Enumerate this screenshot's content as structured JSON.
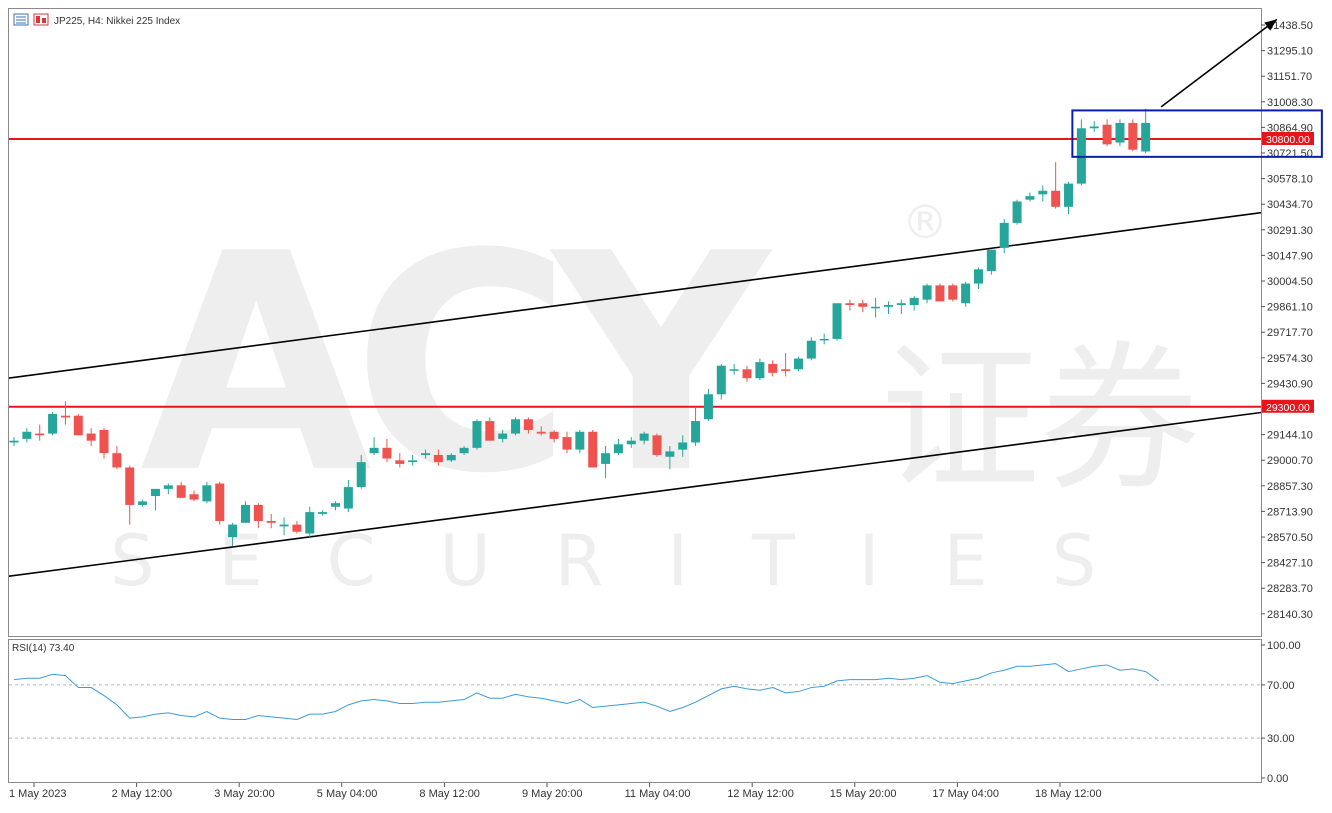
{
  "header": {
    "symbol_label": "JP225, H4:  Nikkei 225 Index"
  },
  "watermark": {
    "brand": "ACY",
    "chinese": "证券",
    "tagline": "SECURITIES",
    "registered": "®"
  },
  "colors": {
    "bull": "#26a69a",
    "bear": "#ef5350",
    "level": "#e8141b",
    "channel": "#000000",
    "box": "#0b1ea8",
    "rsi_line": "#3a9bdc",
    "rsi_level": "#b5b5b5"
  },
  "chart_data": {
    "type": "candlestick",
    "title": "JP225, H4:  Nikkei 225 Index",
    "ylim": [
      28025,
      31510
    ],
    "y_ticks": [
      "31438.50",
      "31295.10",
      "31151.70",
      "31008.30",
      "30864.90",
      "30721.50",
      "30578.10",
      "30434.70",
      "30291.30",
      "30147.90",
      "30004.50",
      "29861.10",
      "29717.70",
      "29574.30",
      "29430.90",
      "29144.10",
      "29000.70",
      "28857.30",
      "28713.90",
      "28570.50",
      "28427.10",
      "28283.70",
      "28140.30"
    ],
    "x_labels": [
      "1 May 2023",
      "2 May 12:00",
      "3 May 20:00",
      "5 May 04:00",
      "8 May 12:00",
      "9 May 20:00",
      "11 May 04:00",
      "12 May 12:00",
      "15 May 20:00",
      "17 May 04:00",
      "18 May 12:00"
    ],
    "candles": [
      {
        "o": 29100,
        "h": 29130,
        "l": 29080,
        "c": 29110
      },
      {
        "o": 29120,
        "h": 29180,
        "l": 29100,
        "c": 29160
      },
      {
        "o": 29150,
        "h": 29200,
        "l": 29110,
        "c": 29140
      },
      {
        "o": 29150,
        "h": 29270,
        "l": 29140,
        "c": 29260
      },
      {
        "o": 29250,
        "h": 29330,
        "l": 29200,
        "c": 29240
      },
      {
        "o": 29250,
        "h": 29260,
        "l": 29140,
        "c": 29140
      },
      {
        "o": 29150,
        "h": 29180,
        "l": 29080,
        "c": 29110
      },
      {
        "o": 29170,
        "h": 29180,
        "l": 29010,
        "c": 29040
      },
      {
        "o": 29040,
        "h": 29080,
        "l": 28950,
        "c": 28960
      },
      {
        "o": 28960,
        "h": 28970,
        "l": 28640,
        "c": 28750
      },
      {
        "o": 28750,
        "h": 28780,
        "l": 28740,
        "c": 28770
      },
      {
        "o": 28800,
        "h": 28840,
        "l": 28720,
        "c": 28840
      },
      {
        "o": 28840,
        "h": 28870,
        "l": 28810,
        "c": 28860
      },
      {
        "o": 28860,
        "h": 28880,
        "l": 28790,
        "c": 28790
      },
      {
        "o": 28810,
        "h": 28830,
        "l": 28770,
        "c": 28780
      },
      {
        "o": 28770,
        "h": 28880,
        "l": 28760,
        "c": 28860
      },
      {
        "o": 28870,
        "h": 28880,
        "l": 28640,
        "c": 28660
      },
      {
        "o": 28570,
        "h": 28650,
        "l": 28520,
        "c": 28640
      },
      {
        "o": 28650,
        "h": 28770,
        "l": 28650,
        "c": 28750
      },
      {
        "o": 28750,
        "h": 28760,
        "l": 28620,
        "c": 28660
      },
      {
        "o": 28660,
        "h": 28700,
        "l": 28620,
        "c": 28650
      },
      {
        "o": 28630,
        "h": 28680,
        "l": 28580,
        "c": 28640
      },
      {
        "o": 28640,
        "h": 28660,
        "l": 28590,
        "c": 28600
      },
      {
        "o": 28590,
        "h": 28740,
        "l": 28570,
        "c": 28710
      },
      {
        "o": 28700,
        "h": 28720,
        "l": 28690,
        "c": 28710
      },
      {
        "o": 28740,
        "h": 28770,
        "l": 28720,
        "c": 28760
      },
      {
        "o": 28730,
        "h": 28890,
        "l": 28710,
        "c": 28850
      },
      {
        "o": 28850,
        "h": 29030,
        "l": 28840,
        "c": 28990
      },
      {
        "o": 29040,
        "h": 29130,
        "l": 29030,
        "c": 29070
      },
      {
        "o": 29070,
        "h": 29120,
        "l": 28990,
        "c": 29010
      },
      {
        "o": 29000,
        "h": 29040,
        "l": 28960,
        "c": 28980
      },
      {
        "o": 28990,
        "h": 29030,
        "l": 28970,
        "c": 29000
      },
      {
        "o": 29030,
        "h": 29060,
        "l": 29010,
        "c": 29040
      },
      {
        "o": 29030,
        "h": 29060,
        "l": 28970,
        "c": 28990
      },
      {
        "o": 29000,
        "h": 29040,
        "l": 28990,
        "c": 29030
      },
      {
        "o": 29040,
        "h": 29080,
        "l": 29030,
        "c": 29070
      },
      {
        "o": 29070,
        "h": 29230,
        "l": 29060,
        "c": 29220
      },
      {
        "o": 29220,
        "h": 29240,
        "l": 29110,
        "c": 29110
      },
      {
        "o": 29120,
        "h": 29170,
        "l": 29100,
        "c": 29150
      },
      {
        "o": 29150,
        "h": 29240,
        "l": 29140,
        "c": 29230
      },
      {
        "o": 29230,
        "h": 29240,
        "l": 29150,
        "c": 29170
      },
      {
        "o": 29160,
        "h": 29190,
        "l": 29140,
        "c": 29150
      },
      {
        "o": 29160,
        "h": 29170,
        "l": 29100,
        "c": 29120
      },
      {
        "o": 29130,
        "h": 29160,
        "l": 29040,
        "c": 29060
      },
      {
        "o": 29060,
        "h": 29170,
        "l": 29040,
        "c": 29160
      },
      {
        "o": 29160,
        "h": 29170,
        "l": 28960,
        "c": 28960
      },
      {
        "o": 28980,
        "h": 29080,
        "l": 28900,
        "c": 29040
      },
      {
        "o": 29040,
        "h": 29120,
        "l": 29030,
        "c": 29090
      },
      {
        "o": 29090,
        "h": 29130,
        "l": 29070,
        "c": 29110
      },
      {
        "o": 29110,
        "h": 29160,
        "l": 29090,
        "c": 29150
      },
      {
        "o": 29140,
        "h": 29150,
        "l": 29020,
        "c": 29030
      },
      {
        "o": 29020,
        "h": 29080,
        "l": 28950,
        "c": 29050
      },
      {
        "o": 29060,
        "h": 29140,
        "l": 29020,
        "c": 29100
      },
      {
        "o": 29100,
        "h": 29300,
        "l": 29080,
        "c": 29220
      },
      {
        "o": 29230,
        "h": 29400,
        "l": 29220,
        "c": 29370
      },
      {
        "o": 29370,
        "h": 29540,
        "l": 29340,
        "c": 29530
      },
      {
        "o": 29510,
        "h": 29540,
        "l": 29480,
        "c": 29510
      },
      {
        "o": 29510,
        "h": 29530,
        "l": 29440,
        "c": 29460
      },
      {
        "o": 29460,
        "h": 29570,
        "l": 29450,
        "c": 29550
      },
      {
        "o": 29540,
        "h": 29560,
        "l": 29470,
        "c": 29490
      },
      {
        "o": 29510,
        "h": 29600,
        "l": 29470,
        "c": 29500
      },
      {
        "o": 29510,
        "h": 29580,
        "l": 29500,
        "c": 29570
      },
      {
        "o": 29570,
        "h": 29690,
        "l": 29560,
        "c": 29670
      },
      {
        "o": 29680,
        "h": 29710,
        "l": 29650,
        "c": 29680
      },
      {
        "o": 29680,
        "h": 29880,
        "l": 29670,
        "c": 29880
      },
      {
        "o": 29880,
        "h": 29900,
        "l": 29840,
        "c": 29870
      },
      {
        "o": 29880,
        "h": 29900,
        "l": 29830,
        "c": 29860
      },
      {
        "o": 29860,
        "h": 29910,
        "l": 29800,
        "c": 29860
      },
      {
        "o": 29860,
        "h": 29890,
        "l": 29820,
        "c": 29870
      },
      {
        "o": 29870,
        "h": 29900,
        "l": 29820,
        "c": 29880
      },
      {
        "o": 29870,
        "h": 29920,
        "l": 29840,
        "c": 29910
      },
      {
        "o": 29900,
        "h": 29990,
        "l": 29880,
        "c": 29980
      },
      {
        "o": 29980,
        "h": 29990,
        "l": 29890,
        "c": 29890
      },
      {
        "o": 29980,
        "h": 29990,
        "l": 29890,
        "c": 29900
      },
      {
        "o": 29880,
        "h": 30000,
        "l": 29860,
        "c": 29990
      },
      {
        "o": 29990,
        "h": 30080,
        "l": 29960,
        "c": 30070
      },
      {
        "o": 30060,
        "h": 30180,
        "l": 30040,
        "c": 30180
      },
      {
        "o": 30190,
        "h": 30350,
        "l": 30160,
        "c": 30330
      },
      {
        "o": 30330,
        "h": 30460,
        "l": 30320,
        "c": 30450
      },
      {
        "o": 30460,
        "h": 30500,
        "l": 30450,
        "c": 30480
      },
      {
        "o": 30490,
        "h": 30540,
        "l": 30450,
        "c": 30510
      },
      {
        "o": 30510,
        "h": 30670,
        "l": 30410,
        "c": 30420
      },
      {
        "o": 30420,
        "h": 30560,
        "l": 30380,
        "c": 30550
      },
      {
        "o": 30550,
        "h": 30910,
        "l": 30540,
        "c": 30860
      },
      {
        "o": 30860,
        "h": 30900,
        "l": 30840,
        "c": 30870
      },
      {
        "o": 30880,
        "h": 30910,
        "l": 30760,
        "c": 30770
      },
      {
        "o": 30780,
        "h": 30910,
        "l": 30760,
        "c": 30890
      },
      {
        "o": 30890,
        "h": 30910,
        "l": 30730,
        "c": 30740
      },
      {
        "o": 30730,
        "h": 30970,
        "l": 30720,
        "c": 30890
      }
    ],
    "horizontal_levels": [
      {
        "value": 30800.0,
        "label": "30800.00"
      },
      {
        "value": 29300.0,
        "label": "29300.00"
      }
    ],
    "channel_lines": [
      {
        "p1": {
          "bar": -0.5,
          "price": 29460
        },
        "p2": {
          "bar": 102.5,
          "price": 30440
        }
      },
      {
        "p1": {
          "bar": -0.5,
          "price": 28350
        },
        "p2": {
          "bar": 102.5,
          "price": 29320
        }
      }
    ],
    "highlight_box": {
      "bar_start": 82.3,
      "bar_end": 101.7,
      "price_top": 30960,
      "price_bottom": 30700
    },
    "trend_arrow": {
      "from": {
        "bar": 89.2,
        "price": 30980
      },
      "to": {
        "bar": 98.2,
        "price": 31470
      }
    },
    "rsi": {
      "label": "RSI(14) 73.40",
      "period": 14,
      "last_value": 73.4,
      "ylim": [
        0,
        100
      ],
      "y_ticks": [
        "100.00",
        "70.00",
        "30.00",
        "0.00"
      ],
      "levels": [
        70,
        30
      ],
      "values": [
        74,
        75,
        75,
        78,
        77,
        68,
        68,
        62,
        55,
        45,
        46,
        48,
        49,
        47,
        46,
        50,
        45,
        44,
        44,
        47,
        46,
        45,
        44,
        48,
        48,
        50,
        55,
        58,
        59,
        58,
        56,
        56,
        57,
        57,
        58,
        59,
        64,
        60,
        60,
        63,
        61,
        60,
        58,
        56,
        59,
        53,
        54,
        55,
        56,
        57,
        54,
        50,
        53,
        57,
        62,
        67,
        69,
        67,
        66,
        68,
        64,
        65,
        68,
        69,
        73,
        74,
        74,
        74,
        75,
        74,
        75,
        77,
        72,
        71,
        73,
        75,
        79,
        81,
        84,
        84,
        85,
        86,
        80,
        82,
        84,
        85,
        81,
        82,
        80,
        73
      ]
    }
  }
}
